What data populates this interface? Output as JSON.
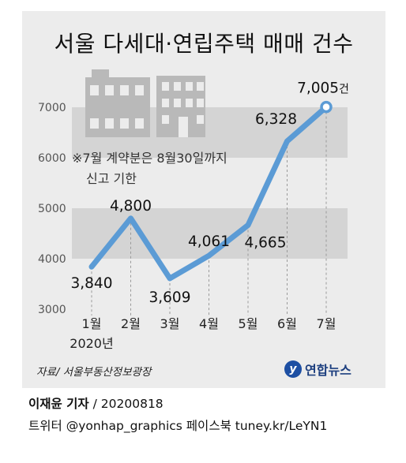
{
  "title": "서울 다세대·연립주택 매매 건수",
  "note": [
    "※7월 계약분은 8월30일까지",
    "신고 기한"
  ],
  "source": "자료/ 서울부동산정보광장",
  "logo": {
    "mark": "y",
    "text": "연합뉴스",
    "color": "#1d4fa3"
  },
  "credit": {
    "reporter": "이재윤 기자",
    "rest": " / 20200818"
  },
  "social": "트위터 @yonhap_graphics  페이스북 tuney.kr/LeYN1",
  "colors": {
    "line": "#5b9bd5",
    "band": "#d4d4d4",
    "background": "#ececec"
  },
  "chart_data": {
    "type": "line",
    "title": "서울 다세대·연립주택 매매 건수",
    "categories": [
      "1월",
      "2월",
      "3월",
      "4월",
      "5월",
      "6월",
      "7월"
    ],
    "year_label": "2020년",
    "values": [
      3840,
      4800,
      3609,
      4061,
      4665,
      6328,
      7005
    ],
    "value_labels": [
      "3,840",
      "4,800",
      "3,609",
      "4,061",
      "4,665",
      "6,328",
      "7,005"
    ],
    "last_value_unit": "건",
    "yticks": [
      "3000",
      "4000",
      "5000",
      "6000",
      "7000"
    ],
    "ylim": [
      3000,
      7000
    ],
    "grid": false,
    "legend": "none"
  }
}
